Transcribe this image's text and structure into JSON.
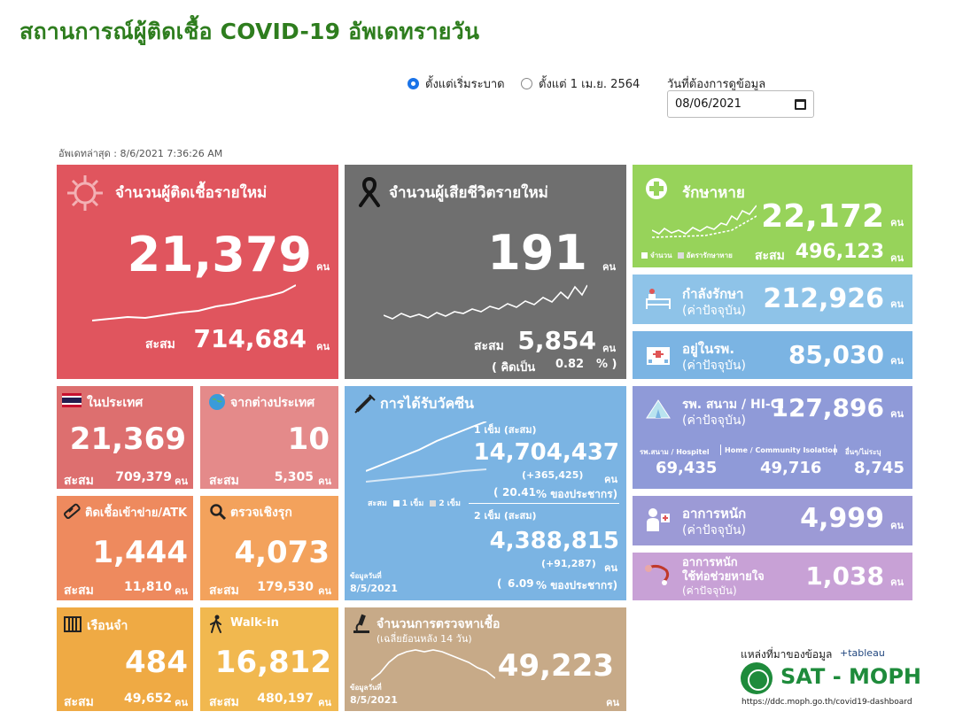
{
  "title": "สถานการณ์ผู้ติดเชื้อ COVID-19 อัพเดทรายวัน",
  "controls": {
    "radio_all": "ตั้งแต่เริ่มระบาด",
    "radio_april": "ตั้งแต่ 1 เม.ย. 2564",
    "date_label": "วันที่ต้องการดูข้อมูล",
    "date_value": "08/06/2021"
  },
  "updated": "อัพเดทล่าสุด : 8/6/2021 7:36:26 AM",
  "unit": "คน",
  "cumulative_label": "สะสม",
  "new_cases": {
    "label": "จำนวนผู้ติดเชื้อรายใหม่",
    "value": "21,379",
    "cumulative": "714,684"
  },
  "new_deaths": {
    "label": "จำนวนผู้เสียชีวิตรายใหม่",
    "value": "191",
    "cumulative": "5,854",
    "ratio_prefix": "( คิดเป็น",
    "ratio_value": "0.82",
    "ratio_suffix": "% )"
  },
  "recovered": {
    "label": "รักษาหาย",
    "value": "22,172",
    "cumulative": "496,123",
    "legend_count": "จำนวน",
    "legend_rate": "อัตรารักษาหาย"
  },
  "treating": {
    "label": "กำลังรักษา",
    "sub": "(ค่าปัจจุบัน)",
    "value": "212,926"
  },
  "hospital": {
    "label": "อยู่ในรพ.",
    "sub": "(ค่าปัจจุบัน)",
    "value": "85,030"
  },
  "domestic": {
    "label": "ในประเทศ",
    "value": "21,369",
    "cumulative": "709,379"
  },
  "imported": {
    "label": "จากต่างประเทศ",
    "value": "10",
    "cumulative": "5,305"
  },
  "vaccine": {
    "label": "การได้รับวัคซีน",
    "dose1_label": "1 เข็ม (สะสม)",
    "dose1_value": "14,704,437",
    "dose1_new": "(+365,425)",
    "dose1_pct_prefix": "(",
    "dose1_pct": "20.41",
    "dose1_pct_suffix": "% ของประชากร)",
    "dose2_label": "2 เข็ม (สะสม)",
    "dose2_value": "4,388,815",
    "dose2_new": "(+91,287)",
    "dose2_pct_prefix": "(",
    "dose2_pct": "6.09",
    "dose2_pct_suffix": "% ของประชากร)",
    "legend_cum": "สะสม",
    "legend_1": "1 เข็ม",
    "legend_2": "2 เข็ม",
    "data_date_label": "ข้อมูลวันที่",
    "data_date": "8/5/2021"
  },
  "field_hospital": {
    "label": "รพ. สนาม / HI-CI",
    "sub": "(ค่าปัจจุบัน)",
    "value": "127,896",
    "col1_label": "รพ.สนาม / Hospitel",
    "col1_value": "69,435",
    "col2_label": "Home / Community Isolation",
    "col2_value": "49,716",
    "col3_label": "อื่นๆ/ไม่ระบุ",
    "col3_value": "8,745"
  },
  "prison": {
    "label": "ติดเชื้อเข้าข่าย/ATK",
    "value": "1,444",
    "cumulative": "11,810"
  },
  "active_search": {
    "label": "ตรวจเชิงรุก",
    "value": "4,073",
    "cumulative": "179,530"
  },
  "severe": {
    "label": "อาการหนัก",
    "sub": "(ค่าปัจจุบัน)",
    "value": "4,999"
  },
  "ventilator": {
    "label": "อาการหนัก",
    "label2": "ใช้ท่อช่วยหายใจ",
    "sub": "(ค่าปัจจุบัน)",
    "value": "1,038"
  },
  "jail": {
    "label": "เรือนจำ",
    "value": "484",
    "cumulative": "49,652"
  },
  "walkin": {
    "label": "Walk-in",
    "value": "16,812",
    "cumulative": "480,197"
  },
  "tests": {
    "label": "จำนวนการตรวจหาเชื้อ",
    "sub": "(เฉลี่ยย้อนหลัง 14 วัน)",
    "value": "49,223",
    "data_date_label": "ข้อมูลวันที่",
    "data_date": "8/5/2021"
  },
  "footer": {
    "source": "แหล่งที่มาของข้อมูล",
    "tableau": "+tableau",
    "logo": "SAT - MOPH",
    "url": "https://ddc.moph.go.th/covid19-dashboard"
  },
  "colors": {
    "accent": "#1a73e8",
    "title": "#2e7d1e",
    "cases": "#e0555e",
    "deaths": "#6f6f6f",
    "recovered": "#97d35a"
  }
}
